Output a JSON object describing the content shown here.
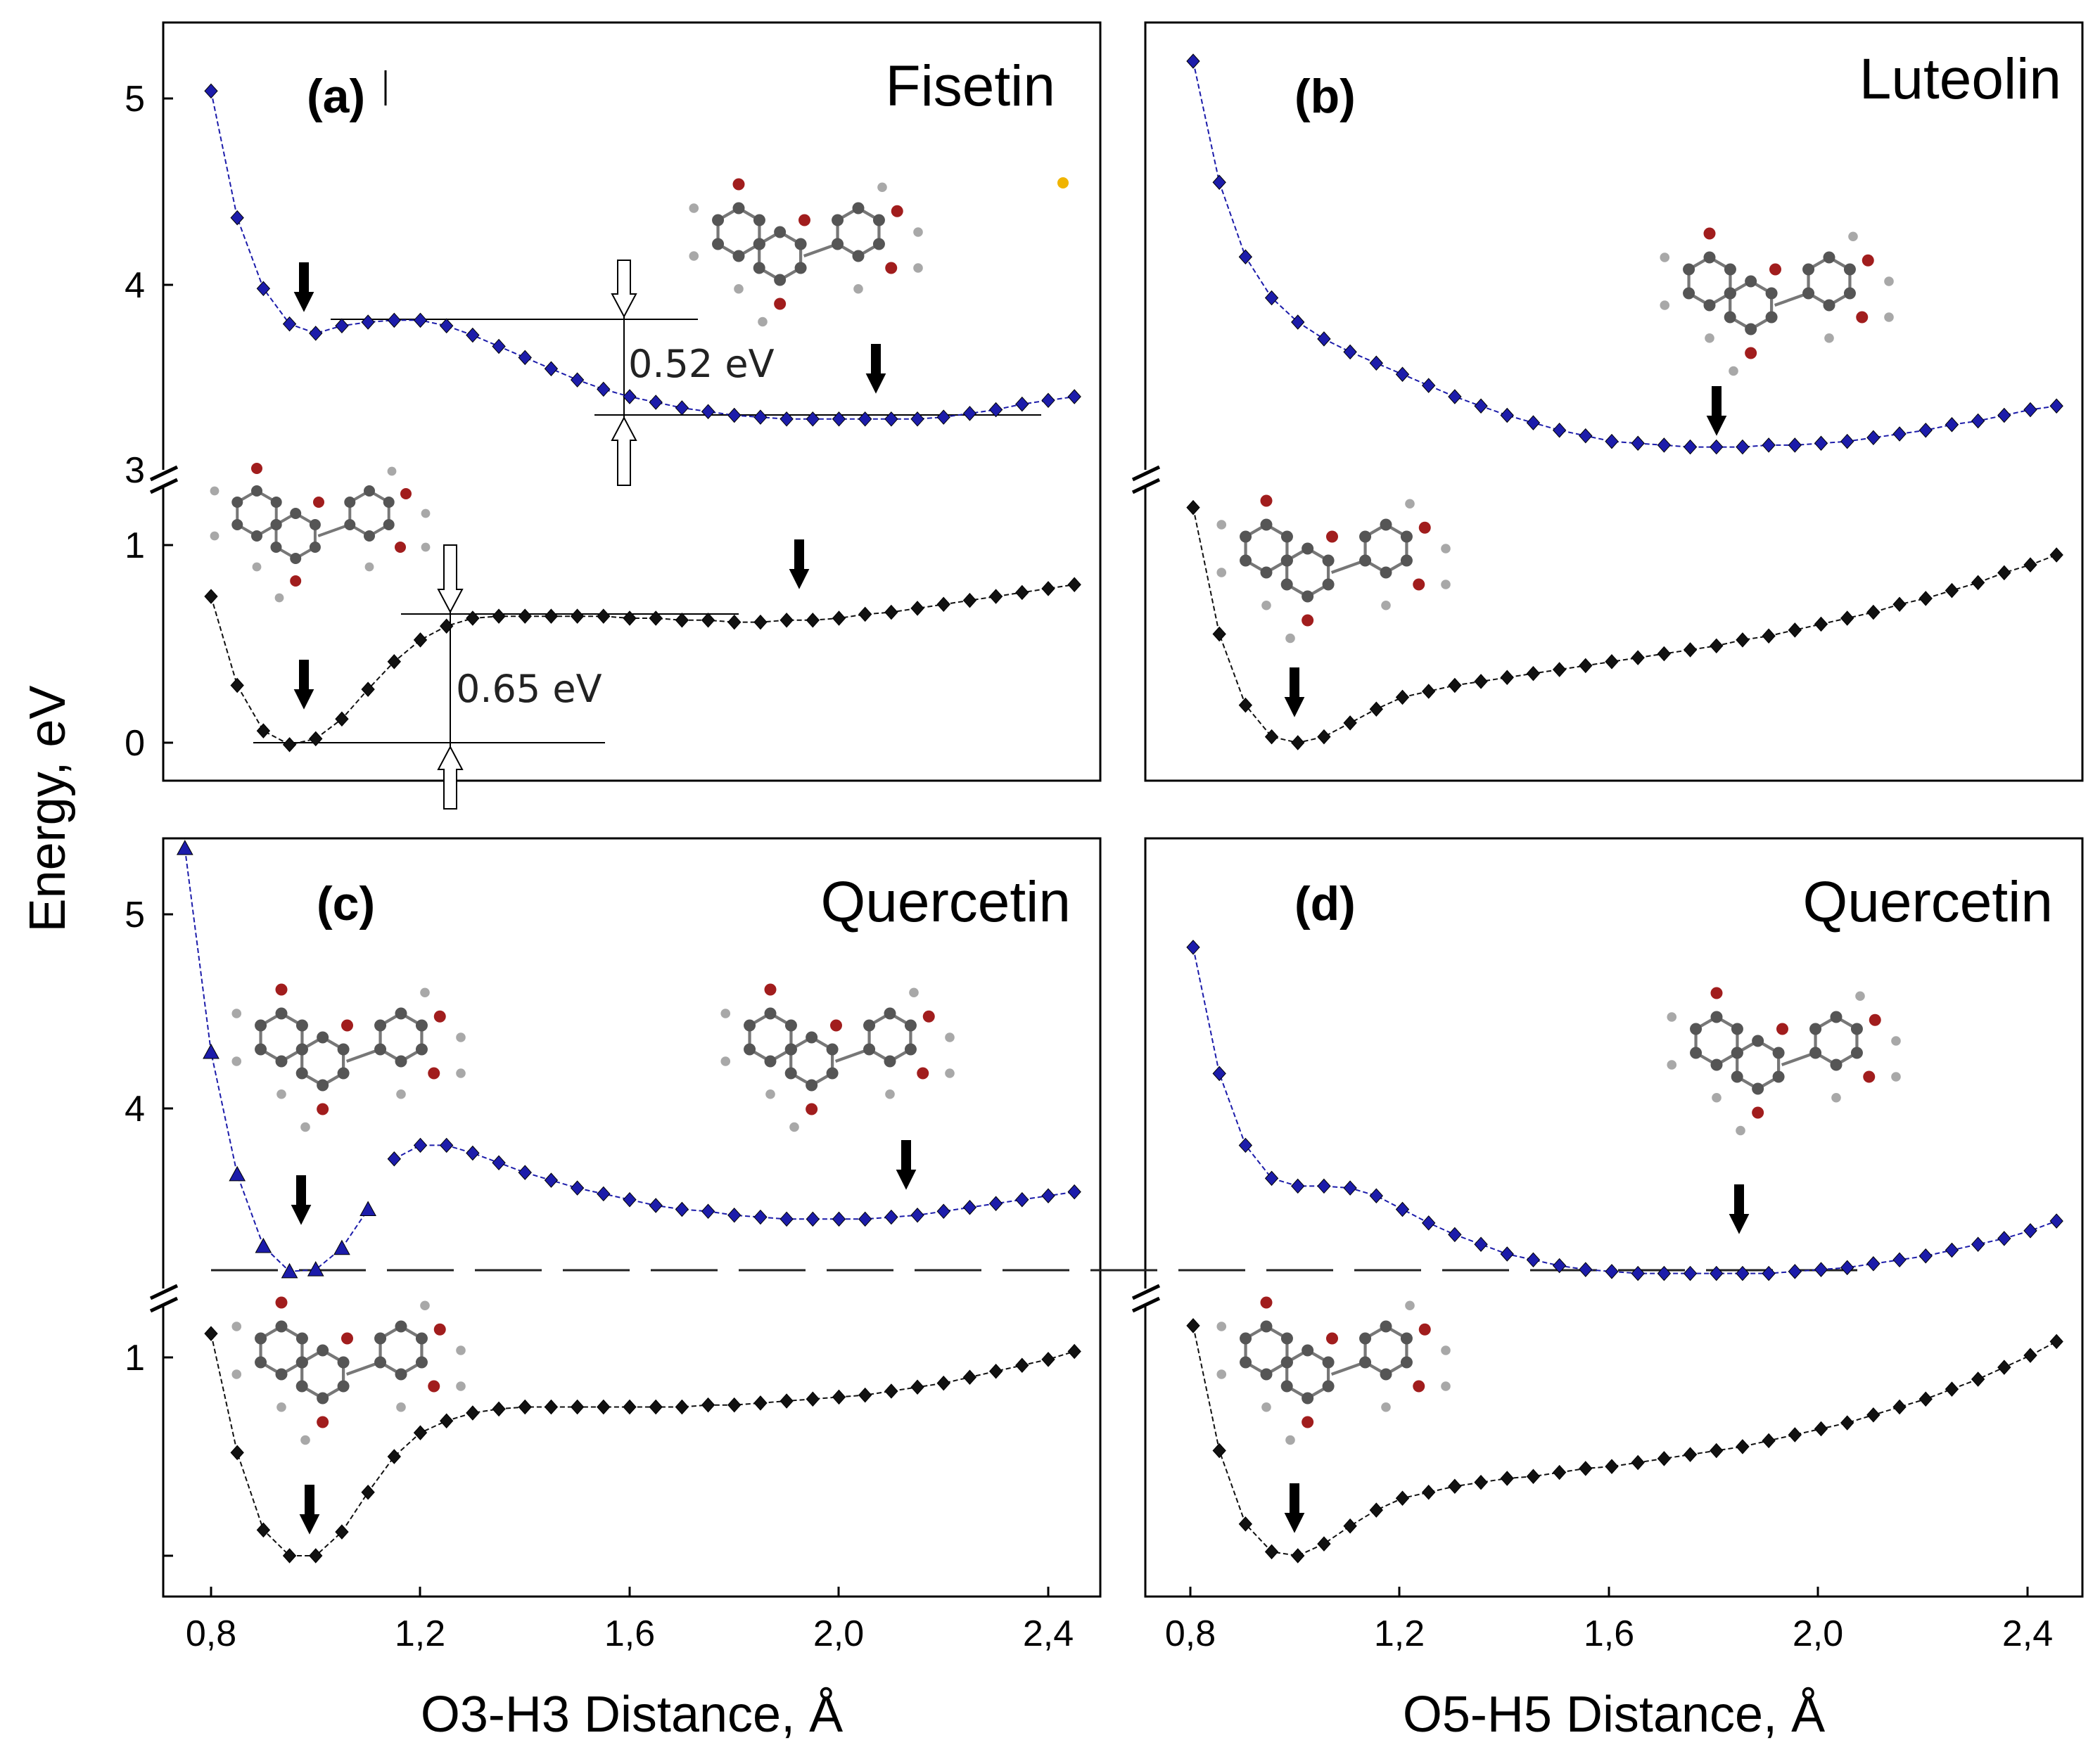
{
  "colors": {
    "upper": "#1c1caa",
    "lower": "#111111",
    "molecule_c": "#555555",
    "molecule_o": "#a11d1d",
    "molecule_h": "#a8a8a8"
  },
  "ylabel": "Energy, eV",
  "xlabels": {
    "left": "O3-H3 Distance, Å",
    "right": "O5-H5 Distance, Å"
  },
  "xticks": [
    "0,8",
    "1,2",
    "1,6",
    "2,0",
    "2,4"
  ],
  "panels": [
    {
      "id": "a",
      "tag": "(a)",
      "name": "Fisetin",
      "yticks": [
        "5",
        "4",
        "3",
        "1",
        "0"
      ],
      "annotations": [
        "0.52 eV",
        "0.65 eV"
      ]
    },
    {
      "id": "b",
      "tag": "(b)",
      "name": "Luteolin"
    },
    {
      "id": "c",
      "tag": "(c)",
      "name": "Quercetin",
      "yticks": [
        "5",
        "4",
        "1"
      ]
    },
    {
      "id": "d",
      "tag": "(d)",
      "name": "Quercetin"
    }
  ],
  "chart_data": [
    {
      "panel": "a",
      "type": "line",
      "title": "Fisetin",
      "xlabel": "O3-H3 Distance, Å",
      "ylabel": "Energy, eV",
      "xlim": [
        0.75,
        2.45
      ],
      "broken_axis": true,
      "series": [
        {
          "name": "upper",
          "marker": "diamond",
          "x": [
            0.8,
            0.85,
            0.9,
            0.95,
            1.0,
            1.05,
            1.1,
            1.15,
            1.2,
            1.25,
            1.3,
            1.35,
            1.4,
            1.45,
            1.5,
            1.55,
            1.6,
            1.65,
            1.7,
            1.75,
            1.8,
            1.85,
            1.9,
            1.95,
            2.0,
            2.05,
            2.1,
            2.15,
            2.2,
            2.25,
            2.3,
            2.35,
            2.4,
            2.45
          ],
          "y": [
            5.04,
            4.36,
            3.98,
            3.79,
            3.74,
            3.78,
            3.8,
            3.81,
            3.81,
            3.78,
            3.73,
            3.67,
            3.61,
            3.55,
            3.49,
            3.44,
            3.4,
            3.37,
            3.34,
            3.32,
            3.3,
            3.29,
            3.28,
            3.28,
            3.28,
            3.28,
            3.28,
            3.28,
            3.29,
            3.31,
            3.33,
            3.36,
            3.38,
            3.4
          ]
        },
        {
          "name": "lower",
          "marker": "diamond",
          "x": [
            0.8,
            0.85,
            0.9,
            0.95,
            1.0,
            1.05,
            1.1,
            1.15,
            1.2,
            1.25,
            1.3,
            1.35,
            1.4,
            1.45,
            1.5,
            1.55,
            1.6,
            1.65,
            1.7,
            1.75,
            1.8,
            1.85,
            1.9,
            1.95,
            2.0,
            2.05,
            2.1,
            2.15,
            2.2,
            2.25,
            2.3,
            2.35,
            2.4,
            2.45
          ],
          "y": [
            0.74,
            0.29,
            0.06,
            -0.01,
            0.02,
            0.12,
            0.27,
            0.41,
            0.52,
            0.59,
            0.63,
            0.64,
            0.64,
            0.64,
            0.64,
            0.64,
            0.63,
            0.63,
            0.62,
            0.62,
            0.61,
            0.61,
            0.62,
            0.62,
            0.63,
            0.65,
            0.66,
            0.68,
            0.7,
            0.72,
            0.74,
            0.76,
            0.78,
            0.8
          ]
        }
      ]
    },
    {
      "panel": "b",
      "type": "line",
      "title": "Luteolin",
      "xlabel": "O5-H5 Distance, Å",
      "ylabel": "Energy, eV",
      "xlim": [
        0.75,
        2.45
      ],
      "broken_axis": true,
      "series": [
        {
          "name": "upper",
          "marker": "diamond",
          "x": [
            0.8,
            0.85,
            0.9,
            0.95,
            1.0,
            1.05,
            1.1,
            1.15,
            1.2,
            1.25,
            1.3,
            1.35,
            1.4,
            1.45,
            1.5,
            1.55,
            1.6,
            1.65,
            1.7,
            1.75,
            1.8,
            1.85,
            1.9,
            1.95,
            2.0,
            2.05,
            2.1,
            2.15,
            2.2,
            2.25,
            2.3,
            2.35,
            2.4,
            2.45
          ],
          "y": [
            5.2,
            4.55,
            4.15,
            3.93,
            3.8,
            3.71,
            3.64,
            3.58,
            3.52,
            3.46,
            3.4,
            3.35,
            3.3,
            3.26,
            3.22,
            3.19,
            3.16,
            3.15,
            3.14,
            3.13,
            3.13,
            3.13,
            3.14,
            3.14,
            3.15,
            3.16,
            3.18,
            3.2,
            3.22,
            3.25,
            3.27,
            3.3,
            3.33,
            3.35
          ]
        },
        {
          "name": "lower",
          "marker": "diamond",
          "x": [
            0.8,
            0.85,
            0.9,
            0.95,
            1.0,
            1.05,
            1.1,
            1.15,
            1.2,
            1.25,
            1.3,
            1.35,
            1.4,
            1.45,
            1.5,
            1.55,
            1.6,
            1.65,
            1.7,
            1.75,
            1.8,
            1.85,
            1.9,
            1.95,
            2.0,
            2.05,
            2.1,
            2.15,
            2.2,
            2.25,
            2.3,
            2.35,
            2.4,
            2.45
          ],
          "y": [
            1.19,
            0.55,
            0.19,
            0.03,
            0.0,
            0.03,
            0.1,
            0.17,
            0.23,
            0.26,
            0.29,
            0.31,
            0.33,
            0.35,
            0.37,
            0.39,
            0.41,
            0.43,
            0.45,
            0.47,
            0.49,
            0.52,
            0.54,
            0.57,
            0.6,
            0.63,
            0.66,
            0.7,
            0.73,
            0.77,
            0.81,
            0.86,
            0.9,
            0.95
          ]
        }
      ]
    },
    {
      "panel": "c",
      "type": "line",
      "title": "Quercetin",
      "xlabel": "O3-H3 Distance, Å",
      "ylabel": "Energy, eV",
      "xlim": [
        0.75,
        2.45
      ],
      "broken_axis": true,
      "series": [
        {
          "name": "upper-left",
          "marker": "triangle",
          "x": [
            0.75,
            0.8,
            0.85,
            0.9,
            0.95,
            1.0,
            1.05,
            1.1
          ],
          "y": [
            5.34,
            4.29,
            3.66,
            3.29,
            3.16,
            3.17,
            3.28,
            3.48
          ]
        },
        {
          "name": "upper-right",
          "marker": "diamond",
          "x": [
            1.15,
            1.2,
            1.25,
            1.3,
            1.35,
            1.4,
            1.45,
            1.5,
            1.55,
            1.6,
            1.65,
            1.7,
            1.75,
            1.8,
            1.85,
            1.9,
            1.95,
            2.0,
            2.05,
            2.1,
            2.15,
            2.2,
            2.25,
            2.3,
            2.35,
            2.4,
            2.45
          ],
          "y": [
            3.74,
            3.81,
            3.81,
            3.77,
            3.72,
            3.67,
            3.63,
            3.59,
            3.56,
            3.53,
            3.5,
            3.48,
            3.47,
            3.45,
            3.44,
            3.43,
            3.43,
            3.43,
            3.43,
            3.44,
            3.45,
            3.47,
            3.49,
            3.51,
            3.53,
            3.55,
            3.57
          ]
        },
        {
          "name": "lower",
          "marker": "diamond",
          "x": [
            0.8,
            0.85,
            0.9,
            0.95,
            1.0,
            1.05,
            1.1,
            1.15,
            1.2,
            1.25,
            1.3,
            1.35,
            1.4,
            1.45,
            1.5,
            1.55,
            1.6,
            1.65,
            1.7,
            1.75,
            1.8,
            1.85,
            1.9,
            1.95,
            2.0,
            2.05,
            2.1,
            2.15,
            2.2,
            2.25,
            2.3,
            2.35,
            2.4,
            2.45
          ],
          "y": [
            1.12,
            0.52,
            0.13,
            0.0,
            0.0,
            0.12,
            0.32,
            0.5,
            0.62,
            0.68,
            0.72,
            0.74,
            0.75,
            0.75,
            0.75,
            0.75,
            0.75,
            0.75,
            0.75,
            0.76,
            0.76,
            0.77,
            0.78,
            0.79,
            0.8,
            0.81,
            0.83,
            0.85,
            0.87,
            0.9,
            0.93,
            0.96,
            0.99,
            1.03
          ]
        }
      ]
    },
    {
      "panel": "d",
      "type": "line",
      "title": "Quercetin",
      "xlabel": "O5-H5 Distance, Å",
      "ylabel": "Energy, eV",
      "xlim": [
        0.75,
        2.45
      ],
      "broken_axis": true,
      "series": [
        {
          "name": "upper",
          "marker": "diamond",
          "x": [
            0.8,
            0.85,
            0.9,
            0.95,
            1.0,
            1.05,
            1.1,
            1.15,
            1.2,
            1.25,
            1.3,
            1.35,
            1.4,
            1.45,
            1.5,
            1.55,
            1.6,
            1.65,
            1.7,
            1.75,
            1.8,
            1.85,
            1.9,
            1.95,
            2.0,
            2.05,
            2.1,
            2.15,
            2.2,
            2.25,
            2.3,
            2.35,
            2.4,
            2.45
          ],
          "y": [
            4.83,
            4.18,
            3.81,
            3.64,
            3.6,
            3.6,
            3.59,
            3.55,
            3.48,
            3.41,
            3.35,
            3.3,
            3.25,
            3.22,
            3.19,
            3.17,
            3.16,
            3.15,
            3.15,
            3.15,
            3.15,
            3.15,
            3.15,
            3.16,
            3.17,
            3.18,
            3.2,
            3.22,
            3.24,
            3.27,
            3.3,
            3.33,
            3.37,
            3.42
          ]
        },
        {
          "name": "lower",
          "marker": "diamond",
          "x": [
            0.8,
            0.85,
            0.9,
            0.95,
            1.0,
            1.05,
            1.1,
            1.15,
            1.2,
            1.25,
            1.3,
            1.35,
            1.4,
            1.45,
            1.5,
            1.55,
            1.6,
            1.65,
            1.7,
            1.75,
            1.8,
            1.85,
            1.9,
            1.95,
            2.0,
            2.05,
            2.1,
            2.15,
            2.2,
            2.25,
            2.3,
            2.35,
            2.4,
            2.45
          ],
          "y": [
            1.16,
            0.53,
            0.16,
            0.02,
            0.0,
            0.06,
            0.15,
            0.23,
            0.29,
            0.32,
            0.35,
            0.37,
            0.39,
            0.4,
            0.42,
            0.44,
            0.45,
            0.47,
            0.49,
            0.51,
            0.53,
            0.55,
            0.58,
            0.61,
            0.64,
            0.67,
            0.71,
            0.75,
            0.79,
            0.84,
            0.89,
            0.95,
            1.01,
            1.08
          ]
        }
      ]
    }
  ]
}
